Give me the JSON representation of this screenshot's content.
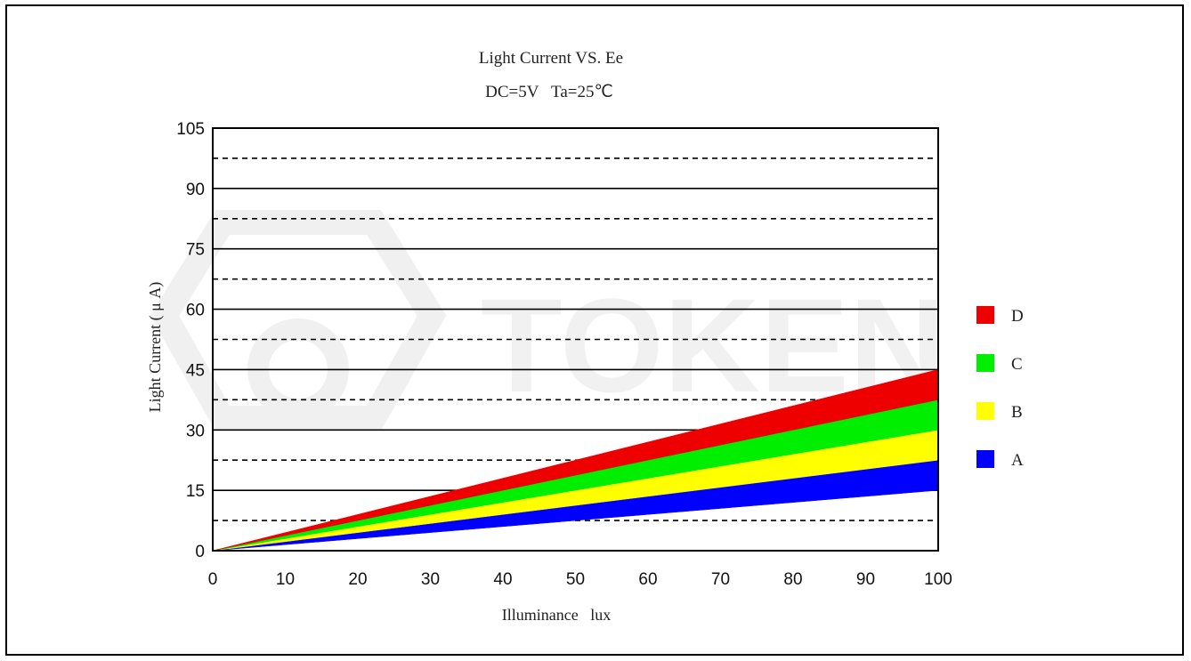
{
  "chart_data": {
    "type": "area",
    "title": "Light Current VS. Ee",
    "subtitle": "DC=5V   Ta=25℃",
    "xlabel": "Illuminance   lux",
    "ylabel": "Light Current ( μ A)",
    "xlim": [
      0,
      100
    ],
    "ylim": [
      0,
      105
    ],
    "x_ticks": [
      "0",
      "10",
      "20",
      "30",
      "40",
      "50",
      "60",
      "70",
      "80",
      "90",
      "100"
    ],
    "y_ticks": [
      "0",
      "15",
      "30",
      "45",
      "60",
      "75",
      "90",
      "105"
    ],
    "solid_gridlines": [
      15,
      30,
      45,
      60,
      75,
      90
    ],
    "dashed_gridlines": [
      7.5,
      22.5,
      37.5,
      52.5,
      67.5,
      82.5,
      97.5
    ],
    "legend_position": "right",
    "series": [
      {
        "name": "A",
        "color": "#0000ff",
        "x": [
          0,
          100
        ],
        "lower": [
          0,
          15
        ],
        "upper": [
          0,
          22.5
        ]
      },
      {
        "name": "B",
        "color": "#ffff00",
        "x": [
          0,
          100
        ],
        "lower": [
          0,
          22.5
        ],
        "upper": [
          0,
          30
        ]
      },
      {
        "name": "C",
        "color": "#00ee00",
        "x": [
          0,
          100
        ],
        "lower": [
          0,
          30
        ],
        "upper": [
          0,
          37.5
        ]
      },
      {
        "name": "D",
        "color": "#ee0000",
        "x": [
          0,
          100
        ],
        "lower": [
          0,
          37.5
        ],
        "upper": [
          0,
          45
        ]
      }
    ]
  },
  "watermark": {
    "text": "TOKEN"
  }
}
